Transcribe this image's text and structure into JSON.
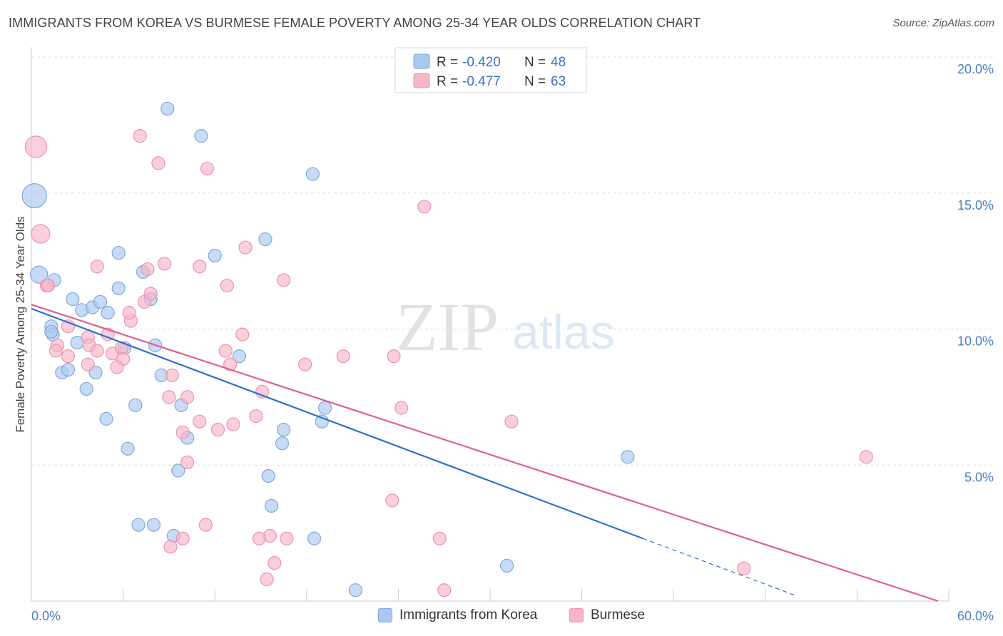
{
  "title": "IMMIGRANTS FROM KOREA VS BURMESE FEMALE POVERTY AMONG 25-34 YEAR OLDS CORRELATION CHART",
  "source": "Source: ZipAtlas.com",
  "watermark": {
    "zip": "ZIP",
    "atlas": "atlas"
  },
  "colors": {
    "korea_fill": "#aac8f0",
    "korea_stroke": "#7ea9e0",
    "korea_line": "#2f6fd0",
    "burmese_fill": "#f6b6c8",
    "burmese_stroke": "#ee92ad",
    "burmese_line": "#e0608a",
    "tick_label": "#4a7ec8",
    "grid": "#dddddd"
  },
  "legend": {
    "rows": [
      {
        "r_label": "R = ",
        "r_value": "-0.420",
        "n_label": "N = ",
        "n_value": "48"
      },
      {
        "r_label": "R = ",
        "r_value": "-0.477",
        "n_label": "N = ",
        "n_value": "63"
      }
    ]
  },
  "chart_data": {
    "type": "scatter",
    "title": "IMMIGRANTS FROM KOREA VS BURMESE FEMALE POVERTY AMONG 25-34 YEAR OLDS CORRELATION CHART",
    "xlabel": "",
    "ylabel": "Female Poverty Among 25-34 Year Olds",
    "xlim": [
      0,
      60
    ],
    "ylim": [
      0,
      20
    ],
    "x_tick_labels": [
      "0.0%",
      "60.0%"
    ],
    "y_ticks": [
      5,
      10,
      15,
      20
    ],
    "y_tick_labels": [
      "5.0%",
      "10.0%",
      "15.0%",
      "20.0%"
    ],
    "grid": true,
    "series": [
      {
        "name": "Immigrants from Korea",
        "r": -0.42,
        "n": 48,
        "trend": {
          "x0": 0,
          "y0": 10.75,
          "x1": 40,
          "y1": 2.3,
          "dash_to_x": 50,
          "dash_to_y": 0.2
        },
        "points": [
          [
            0.2,
            14.9
          ],
          [
            0.5,
            12.0
          ],
          [
            1.5,
            11.8
          ],
          [
            1.3,
            10.1
          ],
          [
            1.4,
            9.8
          ],
          [
            1.3,
            9.9
          ],
          [
            2.7,
            11.1
          ],
          [
            3.3,
            10.7
          ],
          [
            4.0,
            10.8
          ],
          [
            4.5,
            11.0
          ],
          [
            5.0,
            10.6
          ],
          [
            5.7,
            11.5
          ],
          [
            3.0,
            9.5
          ],
          [
            2.0,
            8.4
          ],
          [
            2.4,
            8.5
          ],
          [
            4.2,
            8.4
          ],
          [
            3.6,
            7.8
          ],
          [
            4.9,
            6.7
          ],
          [
            6.1,
            9.3
          ],
          [
            5.7,
            12.8
          ],
          [
            7.3,
            12.1
          ],
          [
            7.8,
            11.1
          ],
          [
            8.1,
            9.4
          ],
          [
            8.5,
            8.3
          ],
          [
            6.8,
            7.2
          ],
          [
            9.8,
            7.2
          ],
          [
            10.2,
            6.0
          ],
          [
            9.6,
            4.8
          ],
          [
            6.3,
            5.6
          ],
          [
            8.9,
            18.1
          ],
          [
            11.1,
            17.1
          ],
          [
            12.0,
            12.7
          ],
          [
            15.3,
            13.3
          ],
          [
            13.6,
            9.0
          ],
          [
            16.5,
            6.3
          ],
          [
            16.4,
            5.8
          ],
          [
            15.5,
            4.6
          ],
          [
            15.7,
            3.5
          ],
          [
            18.4,
            15.7
          ],
          [
            19.0,
            6.6
          ],
          [
            19.2,
            7.1
          ],
          [
            18.5,
            2.3
          ],
          [
            21.2,
            0.4
          ],
          [
            7.0,
            2.8
          ],
          [
            8.0,
            2.8
          ],
          [
            9.3,
            2.4
          ],
          [
            31.1,
            1.3
          ],
          [
            39.0,
            5.3
          ]
        ]
      },
      {
        "name": "Burmese",
        "r": -0.477,
        "n": 63,
        "trend": {
          "x0": 0,
          "y0": 10.9,
          "x1": 59.3,
          "y1": 0.0
        },
        "points": [
          [
            0.3,
            16.7
          ],
          [
            0.6,
            13.5
          ],
          [
            1.0,
            11.6
          ],
          [
            1.1,
            11.6
          ],
          [
            2.4,
            10.1
          ],
          [
            1.7,
            9.4
          ],
          [
            1.6,
            9.2
          ],
          [
            2.4,
            9.0
          ],
          [
            3.7,
            9.7
          ],
          [
            3.8,
            9.4
          ],
          [
            4.3,
            9.2
          ],
          [
            5.0,
            9.8
          ],
          [
            5.3,
            9.1
          ],
          [
            5.9,
            9.3
          ],
          [
            6.0,
            8.9
          ],
          [
            5.6,
            8.6
          ],
          [
            3.7,
            8.7
          ],
          [
            6.5,
            10.3
          ],
          [
            6.4,
            10.6
          ],
          [
            7.4,
            11.0
          ],
          [
            7.8,
            11.3
          ],
          [
            7.6,
            12.2
          ],
          [
            8.7,
            12.4
          ],
          [
            4.3,
            12.3
          ],
          [
            7.1,
            17.1
          ],
          [
            8.3,
            16.1
          ],
          [
            11.5,
            15.9
          ],
          [
            11.0,
            12.3
          ],
          [
            12.8,
            11.6
          ],
          [
            14.0,
            13.0
          ],
          [
            9.2,
            8.3
          ],
          [
            9.0,
            7.5
          ],
          [
            10.2,
            7.5
          ],
          [
            11.0,
            6.6
          ],
          [
            9.9,
            6.2
          ],
          [
            10.2,
            5.1
          ],
          [
            12.2,
            6.3
          ],
          [
            13.2,
            6.5
          ],
          [
            13.0,
            8.7
          ],
          [
            12.7,
            9.2
          ],
          [
            13.8,
            9.8
          ],
          [
            14.7,
            6.8
          ],
          [
            15.1,
            7.7
          ],
          [
            16.5,
            11.8
          ],
          [
            17.9,
            8.7
          ],
          [
            20.4,
            9.0
          ],
          [
            23.7,
            9.0
          ],
          [
            24.2,
            7.1
          ],
          [
            25.7,
            14.5
          ],
          [
            31.4,
            6.6
          ],
          [
            23.6,
            3.7
          ],
          [
            11.4,
            2.8
          ],
          [
            9.9,
            2.3
          ],
          [
            15.6,
            2.4
          ],
          [
            16.7,
            2.3
          ],
          [
            15.9,
            1.4
          ],
          [
            15.4,
            0.8
          ],
          [
            26.7,
            2.3
          ],
          [
            27.0,
            0.4
          ],
          [
            46.6,
            1.2
          ],
          [
            54.6,
            5.3
          ],
          [
            14.9,
            2.3
          ],
          [
            9.1,
            2.0
          ]
        ]
      }
    ]
  }
}
